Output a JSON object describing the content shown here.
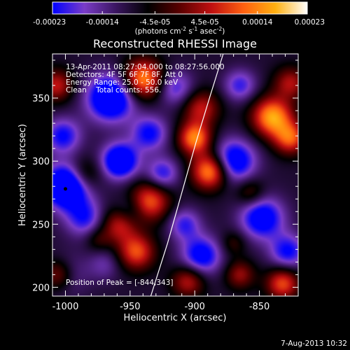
{
  "chart_data": {
    "type": "heatmap",
    "title": "Reconstructed RHESSI Image",
    "xlabel": "Heliocentric X (arcsec)",
    "ylabel": "Heliocentric Y (arcsec)",
    "xlim": [
      -1010,
      -820
    ],
    "ylim": [
      193,
      385
    ],
    "x_ticks": [
      -1000,
      -950,
      -900,
      -850
    ],
    "x_tick_labels": [
      "-1000",
      "-950",
      "-900",
      "-850"
    ],
    "y_ticks": [
      200,
      250,
      300,
      350
    ],
    "y_tick_labels": [
      "200",
      "250",
      "300",
      "350"
    ],
    "colorbar": {
      "range": [
        -0.00023,
        0.00023
      ],
      "tick_values": [
        -0.00023,
        -0.00014,
        -4.5e-05,
        4.5e-05,
        0.00014,
        0.00023
      ],
      "tick_labels": [
        "-0.00023",
        "-0.00014",
        "-4.5e-05",
        "4.5e-05",
        "0.00014",
        "0.00023"
      ],
      "unit_label": "(photons cm⁻² s⁻¹ asec⁻²)"
    },
    "colormap": [
      "#0000ff",
      "#7a3cc8",
      "#3a1560",
      "#000000",
      "#5a0000",
      "#c01010",
      "#ff6010",
      "#ffb010",
      "#ffffff"
    ],
    "annotations": [
      "13-Apr-2011 08:27:04.000 to 08:27:56.000",
      "Detectors: 4F 5F 6F 7F 8F, Att 0",
      "Energy Range: 25.0 - 50.0 keV",
      "Clean    Total counts: 556."
    ],
    "peak_label": "Position of Peak = [-844,343]",
    "blobs": [
      {
        "x": -1000,
        "y": 280,
        "v": -1.0,
        "s": 12
      },
      {
        "x": -965,
        "y": 350,
        "v": -0.9,
        "s": 13
      },
      {
        "x": -958,
        "y": 300,
        "v": -0.85,
        "s": 10
      },
      {
        "x": -1002,
        "y": 320,
        "v": -0.55,
        "s": 10
      },
      {
        "x": -985,
        "y": 255,
        "v": -0.5,
        "s": 11
      },
      {
        "x": -935,
        "y": 322,
        "v": -0.55,
        "s": 10
      },
      {
        "x": -915,
        "y": 358,
        "v": -0.45,
        "s": 10
      },
      {
        "x": -925,
        "y": 290,
        "v": -0.5,
        "s": 9
      },
      {
        "x": -870,
        "y": 300,
        "v": -0.75,
        "s": 12
      },
      {
        "x": -848,
        "y": 255,
        "v": -0.7,
        "s": 12
      },
      {
        "x": -828,
        "y": 228,
        "v": -0.55,
        "s": 10
      },
      {
        "x": -895,
        "y": 225,
        "v": -0.65,
        "s": 11
      },
      {
        "x": -908,
        "y": 250,
        "v": -0.45,
        "s": 9
      },
      {
        "x": -865,
        "y": 360,
        "v": -0.45,
        "s": 9
      },
      {
        "x": -1000,
        "y": 210,
        "v": -0.4,
        "s": 11
      },
      {
        "x": -950,
        "y": 260,
        "v": -0.35,
        "s": 9
      },
      {
        "x": -970,
        "y": 218,
        "v": -0.25,
        "s": 9
      },
      {
        "x": -895,
        "y": 342,
        "v": 0.55,
        "s": 10
      },
      {
        "x": -900,
        "y": 318,
        "v": 0.85,
        "s": 9
      },
      {
        "x": -888,
        "y": 292,
        "v": 0.95,
        "s": 10
      },
      {
        "x": -935,
        "y": 268,
        "v": 0.75,
        "s": 11
      },
      {
        "x": -958,
        "y": 250,
        "v": 0.6,
        "s": 10
      },
      {
        "x": -945,
        "y": 228,
        "v": 0.7,
        "s": 10
      },
      {
        "x": -905,
        "y": 205,
        "v": 0.55,
        "s": 9
      },
      {
        "x": -832,
        "y": 203,
        "v": 0.7,
        "s": 9
      },
      {
        "x": -865,
        "y": 210,
        "v": 0.45,
        "s": 8
      },
      {
        "x": -840,
        "y": 335,
        "v": 0.95,
        "s": 11
      },
      {
        "x": -826,
        "y": 318,
        "v": 0.7,
        "s": 9
      },
      {
        "x": -826,
        "y": 362,
        "v": 0.5,
        "s": 9
      },
      {
        "x": -857,
        "y": 275,
        "v": 0.35,
        "s": 8
      },
      {
        "x": -940,
        "y": 365,
        "v": 0.9,
        "s": 11
      },
      {
        "x": -1007,
        "y": 360,
        "v": 0.55,
        "s": 9
      },
      {
        "x": -1005,
        "y": 210,
        "v": 0.65,
        "s": 9
      },
      {
        "x": -985,
        "y": 290,
        "v": 0.35,
        "s": 9
      },
      {
        "x": -975,
        "y": 238,
        "v": 0.25,
        "s": 7
      },
      {
        "x": -870,
        "y": 235,
        "v": 0.25,
        "s": 7
      }
    ],
    "limb_curve": [
      [
        -934,
        193
      ],
      [
        -921,
        235
      ],
      [
        -910,
        275
      ],
      [
        -899,
        315
      ],
      [
        -888,
        352
      ],
      [
        -878,
        385
      ]
    ],
    "date_footer": "7-Aug-2013 10:32"
  }
}
